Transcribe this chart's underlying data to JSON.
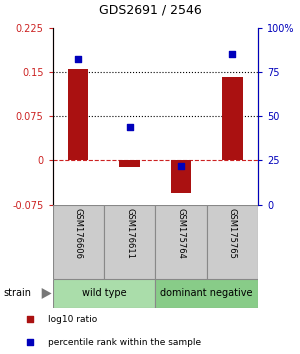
{
  "title": "GDS2691 / 2546",
  "samples": [
    "GSM176606",
    "GSM176611",
    "GSM175764",
    "GSM175765"
  ],
  "log10_ratio": [
    0.155,
    -0.012,
    -0.055,
    0.142
  ],
  "percentile_rank": [
    82,
    44,
    22,
    85
  ],
  "groups": [
    {
      "label": "wild type",
      "samples": [
        0,
        1
      ],
      "color": "#aaddaa"
    },
    {
      "label": "dominant negative",
      "samples": [
        2,
        3
      ],
      "color": "#88cc88"
    }
  ],
  "ylim_left": [
    -0.075,
    0.225
  ],
  "ylim_right": [
    0,
    100
  ],
  "yticks_left": [
    -0.075,
    0,
    0.075,
    0.15,
    0.225
  ],
  "yticks_right": [
    0,
    25,
    50,
    75,
    100
  ],
  "hlines_dotted": [
    0.075,
    0.15
  ],
  "hline_dashed": 0,
  "bar_color": "#aa1111",
  "dot_color": "#0000bb",
  "bar_width": 0.4,
  "dot_size": 25,
  "strain_label": "strain",
  "legend_items": [
    {
      "color": "#aa1111",
      "label": "log10 ratio"
    },
    {
      "color": "#0000bb",
      "label": "percentile rank within the sample"
    }
  ],
  "group_border_color": "#888888",
  "sample_box_color": "#cccccc",
  "right_axis_color": "#0000bb",
  "left_axis_color": "#cc2222",
  "title_fontsize": 9,
  "tick_fontsize": 7,
  "sample_fontsize": 6,
  "group_fontsize": 7,
  "legend_fontsize": 6.5
}
